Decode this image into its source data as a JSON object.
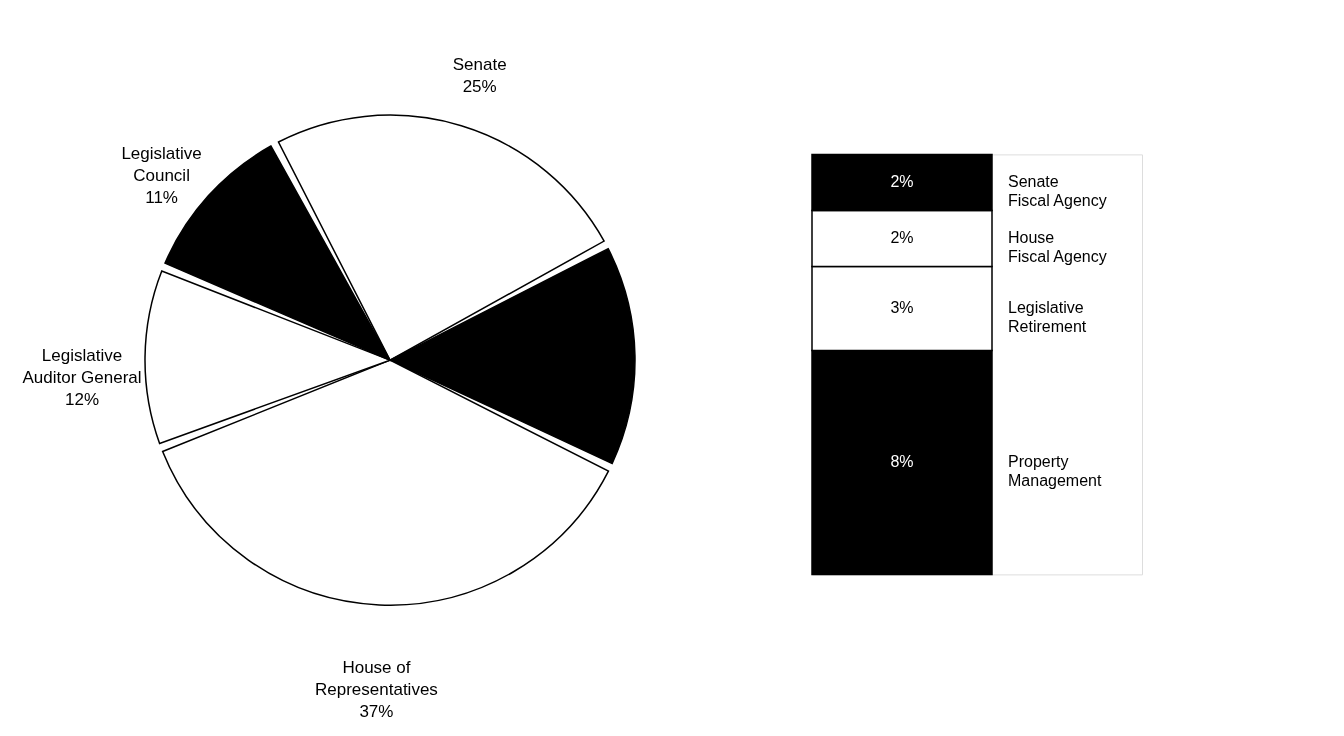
{
  "chart_data": [
    {
      "type": "pie",
      "categories": [
        "Senate",
        null,
        "House of\nRepresentatives",
        "Legislative\nAuditor General",
        "Legislative\nCouncil"
      ],
      "values": [
        25,
        15,
        37,
        12,
        11
      ],
      "value_labels": [
        "25%",
        null,
        "37%",
        "12%",
        "11%"
      ],
      "colors": [
        "#ffffff",
        "#000000",
        "#ffffff",
        "#ffffff",
        "#000000"
      ]
    },
    {
      "type": "bar",
      "stacked": true,
      "categories": [
        null
      ],
      "series": [
        {
          "name": "Property\nManagement",
          "color": "#000000",
          "values": [
            8
          ],
          "value_labels": [
            "8%"
          ]
        },
        {
          "name": "Legislative\nRetirement",
          "color": "#ffffff",
          "values": [
            3
          ],
          "value_labels": [
            "3%"
          ]
        },
        {
          "name": "House\nFiscal Agency",
          "color": "#ffffff",
          "values": [
            2
          ],
          "value_labels": [
            "2%"
          ]
        },
        {
          "name": "Senate\nFiscal Agency",
          "color": "#000000",
          "values": [
            2
          ],
          "value_labels": [
            "2%"
          ]
        }
      ]
    }
  ]
}
